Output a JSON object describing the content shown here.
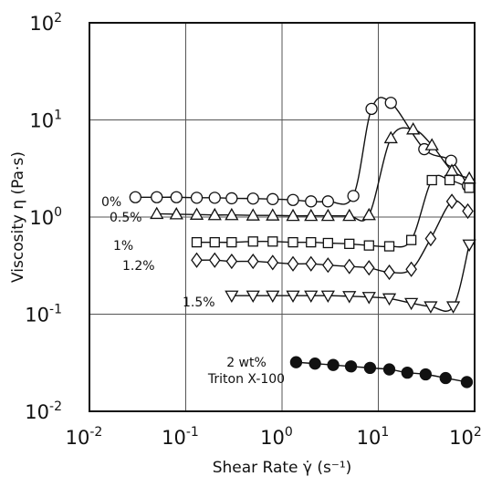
{
  "chart_data": {
    "type": "scatter",
    "title": "",
    "xlabel": "Shear Rate γ̇  (s⁻¹)",
    "ylabel": "Viscosity η (Pa·s)",
    "xscale": "log",
    "yscale": "log",
    "xlim": [
      0.01,
      100
    ],
    "ylim": [
      0.01,
      100
    ],
    "grid": true,
    "x_ticks": [
      {
        "value": 0.01,
        "base": "10",
        "exp": "-2"
      },
      {
        "value": 0.1,
        "base": "10",
        "exp": "-1"
      },
      {
        "value": 1,
        "base": "10",
        "exp": "0"
      },
      {
        "value": 10,
        "base": "10",
        "exp": "1"
      },
      {
        "value": 100,
        "base": "10",
        "exp": "2"
      }
    ],
    "y_ticks": [
      {
        "value": 0.01,
        "base": "10",
        "exp": "-2"
      },
      {
        "value": 0.1,
        "base": "10",
        "exp": "-1"
      },
      {
        "value": 1,
        "base": "10",
        "exp": "0"
      },
      {
        "value": 10,
        "base": "10",
        "exp": "1"
      },
      {
        "value": 100,
        "base": "10",
        "exp": "2"
      }
    ],
    "series": [
      {
        "name": "0%",
        "marker": "circle",
        "filled": false,
        "x": [
          0.03,
          0.05,
          0.08,
          0.13,
          0.2,
          0.3,
          0.5,
          0.8,
          1.3,
          2,
          3,
          5.5,
          8.5,
          13.5,
          30,
          57,
          85
        ],
        "y": [
          1.6,
          1.6,
          1.6,
          1.58,
          1.58,
          1.56,
          1.55,
          1.53,
          1.5,
          1.45,
          1.45,
          1.65,
          13,
          15,
          5,
          3.8,
          2.1
        ]
      },
      {
        "name": "0.5%",
        "marker": "triangle-up",
        "filled": false,
        "x": [
          0.05,
          0.08,
          0.13,
          0.2,
          0.3,
          0.5,
          0.8,
          1.3,
          2,
          3,
          5,
          8,
          13.5,
          23,
          36,
          58,
          88
        ],
        "y": [
          1.08,
          1.07,
          1.06,
          1.05,
          1.05,
          1.04,
          1.04,
          1.03,
          1.03,
          1.03,
          1.03,
          1.05,
          6.5,
          8,
          5.5,
          3,
          2.5
        ]
      },
      {
        "name": "1%",
        "marker": "square",
        "filled": false,
        "x": [
          0.13,
          0.2,
          0.3,
          0.5,
          0.8,
          1.3,
          2,
          3,
          5,
          8,
          13,
          22,
          36,
          55,
          88
        ],
        "y": [
          0.55,
          0.55,
          0.55,
          0.56,
          0.56,
          0.55,
          0.55,
          0.54,
          0.53,
          0.51,
          0.5,
          0.58,
          2.4,
          2.4,
          2
        ]
      },
      {
        "name": "1.2%",
        "marker": "diamond",
        "filled": false,
        "x": [
          0.13,
          0.2,
          0.3,
          0.5,
          0.8,
          1.3,
          2,
          3,
          5,
          8,
          13,
          22,
          35,
          58,
          85
        ],
        "y": [
          0.36,
          0.36,
          0.35,
          0.35,
          0.34,
          0.33,
          0.33,
          0.32,
          0.31,
          0.3,
          0.27,
          0.29,
          0.6,
          1.45,
          1.15
        ]
      },
      {
        "name": "1.5%",
        "marker": "triangle-down",
        "filled": false,
        "x": [
          0.3,
          0.5,
          0.8,
          1.3,
          2,
          3,
          5,
          8,
          13,
          22,
          35,
          60,
          88
        ],
        "y": [
          0.155,
          0.155,
          0.155,
          0.155,
          0.155,
          0.155,
          0.153,
          0.15,
          0.145,
          0.13,
          0.12,
          0.12,
          0.52
        ]
      },
      {
        "name": "2 wt% Triton X-100",
        "marker": "circle",
        "filled": true,
        "x": [
          1.4,
          2.2,
          3.4,
          5.2,
          8.2,
          13,
          20,
          31,
          50,
          83
        ],
        "y": [
          0.032,
          0.031,
          0.03,
          0.029,
          0.028,
          0.027,
          0.025,
          0.024,
          0.022,
          0.02
        ]
      }
    ],
    "annotations": [
      {
        "series": 0,
        "lines": [
          "0%"
        ]
      },
      {
        "series": 1,
        "lines": [
          "0.5%"
        ]
      },
      {
        "series": 2,
        "lines": [
          "1%"
        ]
      },
      {
        "series": 3,
        "lines": [
          "1.2%"
        ]
      },
      {
        "series": 4,
        "lines": [
          "1.5%"
        ]
      },
      {
        "series": 5,
        "lines": [
          "2 wt%",
          "Triton X-100"
        ]
      }
    ]
  }
}
